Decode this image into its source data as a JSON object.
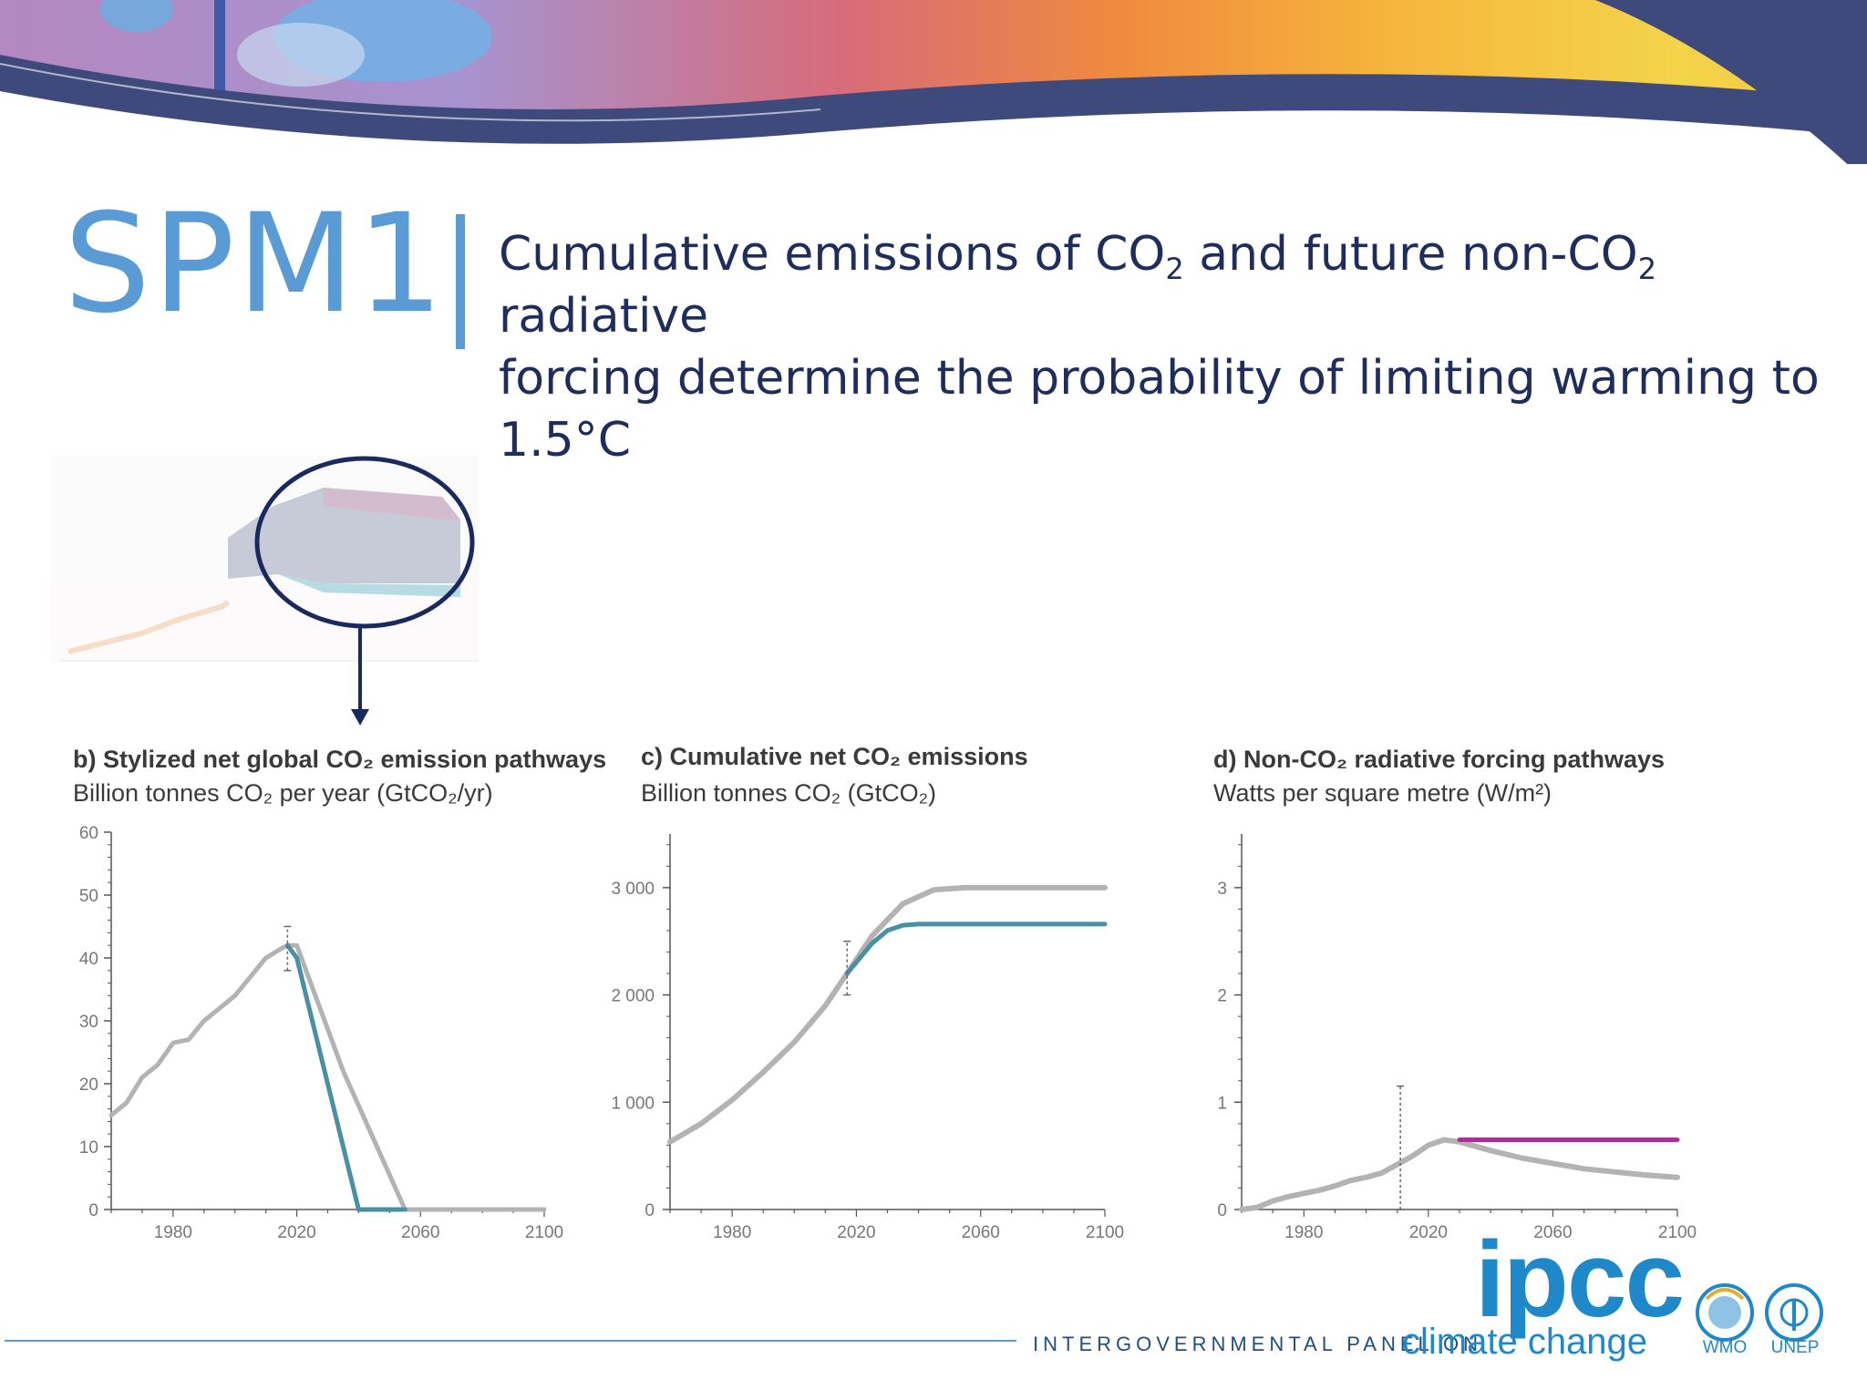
{
  "header": {
    "code": "SPM1",
    "headline_line1_parts": [
      "Cumulative emissions of CO",
      "2",
      " and future non-CO",
      "2",
      " radiative"
    ],
    "headline_line2": "forcing determine the probability of limiting warming to 1.5°C"
  },
  "colors": {
    "accent": "#5b9bd5",
    "headline": "#1f2d5c",
    "navy": "#1b2a5e",
    "gray_line": "#b3b3b3",
    "teal_line": "#4a90a4",
    "magenta_line": "#a8338e",
    "ipcc_blue": "#1f88c9"
  },
  "chart_data": [
    {
      "type": "line",
      "title": "b) Stylized net global CO₂ emission pathways",
      "ylabel": "Billion tonnes CO₂ per year (GtCO₂/yr)",
      "ylim": [
        0,
        60
      ],
      "yticks": [
        0,
        10,
        20,
        30,
        40,
        50,
        60
      ],
      "yticks_labels": [
        "0",
        "10",
        "20",
        "30",
        "40",
        "50",
        "60"
      ],
      "xlim": [
        1960,
        2100
      ],
      "xticks": [
        1980,
        2020,
        2060,
        2100
      ],
      "grid": false,
      "error_bar": {
        "x": 2017,
        "low": 38,
        "high": 45
      },
      "series": [
        {
          "color": "#b3b3b3",
          "width": 5,
          "x": [
            1960,
            1965,
            1970,
            1975,
            1980,
            1985,
            1990,
            1995,
            2000,
            2005,
            2010,
            2015,
            2017,
            2020,
            2035,
            2055,
            2100
          ],
          "values": [
            15,
            17,
            21,
            23,
            26.5,
            27,
            30,
            32,
            34,
            37,
            40,
            41.5,
            42,
            42,
            22,
            0,
            0
          ]
        },
        {
          "color": "#4a90a4",
          "width": 5,
          "x": [
            2017,
            2020,
            2040,
            2055
          ],
          "values": [
            42,
            40,
            0,
            0
          ]
        }
      ]
    },
    {
      "type": "line",
      "title": "c) Cumulative net CO₂ emissions",
      "ylabel": "Billion tonnes CO₂ (GtCO₂)",
      "ylim": [
        0,
        3500
      ],
      "yticks": [
        0,
        1000,
        2000,
        3000
      ],
      "yticks_labels": [
        "0",
        "1 000",
        "2 000",
        "3 000"
      ],
      "xlim": [
        1960,
        2100
      ],
      "xticks": [
        1980,
        2020,
        2060,
        2100
      ],
      "grid": false,
      "error_bar": {
        "x": 2017,
        "low": 2000,
        "high": 2500
      },
      "series": [
        {
          "color": "#b3b3b3",
          "width": 6,
          "x": [
            1960,
            1970,
            1980,
            1990,
            2000,
            2010,
            2017,
            2025,
            2035,
            2045,
            2055,
            2100
          ],
          "values": [
            630,
            800,
            1020,
            1280,
            1560,
            1900,
            2200,
            2550,
            2850,
            2980,
            3000,
            3000
          ]
        },
        {
          "color": "#4a90a4",
          "width": 5,
          "x": [
            2017,
            2025,
            2030,
            2035,
            2040,
            2100
          ],
          "values": [
            2200,
            2480,
            2600,
            2650,
            2660,
            2660
          ]
        }
      ]
    },
    {
      "type": "line",
      "title": "d) Non-CO₂ radiative forcing pathways",
      "ylabel": "Watts per square metre (W/m²)",
      "ylim": [
        0,
        3.5
      ],
      "yticks": [
        0,
        1,
        2,
        3
      ],
      "yticks_labels": [
        "0",
        "1",
        "2",
        "3"
      ],
      "xlim": [
        1960,
        2100
      ],
      "xticks": [
        1980,
        2020,
        2060,
        2100
      ],
      "grid": false,
      "error_bar": {
        "x": 2011,
        "low": 0,
        "high": 1.15
      },
      "series": [
        {
          "color": "#b3b3b3",
          "width": 6,
          "x": [
            1960,
            1965,
            1970,
            1975,
            1980,
            1985,
            1990,
            1995,
            2000,
            2005,
            2010,
            2015,
            2020,
            2025,
            2030,
            2040,
            2050,
            2060,
            2070,
            2080,
            2090,
            2100
          ],
          "values": [
            0,
            0.02,
            0.08,
            0.12,
            0.15,
            0.18,
            0.22,
            0.27,
            0.3,
            0.34,
            0.42,
            0.5,
            0.6,
            0.65,
            0.63,
            0.55,
            0.48,
            0.43,
            0.38,
            0.35,
            0.32,
            0.3
          ]
        },
        {
          "color": "#a8338e",
          "width": 5,
          "x": [
            2030,
            2100
          ],
          "values": [
            0.65,
            0.65
          ]
        }
      ]
    }
  ],
  "footer": {
    "org_line": "INTERGOVERNMENTAL PANEL ON",
    "climate_change": "climate change",
    "ipcc": "ipcc",
    "wmo": "WMO",
    "unep": "UNEP"
  }
}
